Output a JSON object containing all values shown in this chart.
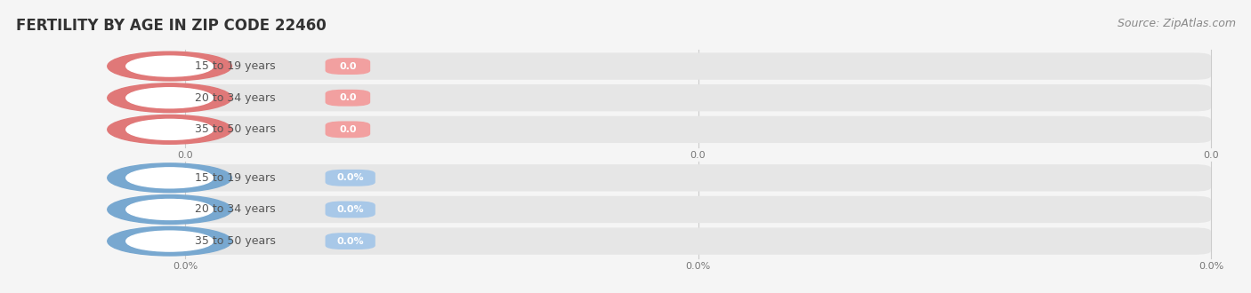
{
  "title": "FERTILITY BY AGE IN ZIP CODE 22460",
  "source": "Source: ZipAtlas.com",
  "top_section": {
    "categories": [
      "15 to 19 years",
      "20 to 34 years",
      "35 to 50 years"
    ],
    "values": [
      0.0,
      0.0,
      0.0
    ],
    "bar_color": "#f2a0a0",
    "circle_color": "#e07878",
    "value_text_color": "#ffffff",
    "tick_labels": [
      "0.0",
      "0.0",
      "0.0"
    ]
  },
  "bottom_section": {
    "categories": [
      "15 to 19 years",
      "20 to 34 years",
      "35 to 50 years"
    ],
    "values": [
      0.0,
      0.0,
      0.0
    ],
    "bar_color": "#a8c8e8",
    "circle_color": "#78a8d0",
    "value_text_color": "#ffffff",
    "tick_labels": [
      "0.0%",
      "0.0%",
      "0.0%"
    ]
  },
  "bg_color": "#f5f5f5",
  "bar_bg_color": "#e6e6e6",
  "label_color": "#555555",
  "title_color": "#333333",
  "source_color": "#888888",
  "tick_color": "#777777",
  "title_fontsize": 12,
  "source_fontsize": 9,
  "label_fontsize": 9,
  "value_fontsize": 8,
  "tick_fontsize": 8
}
